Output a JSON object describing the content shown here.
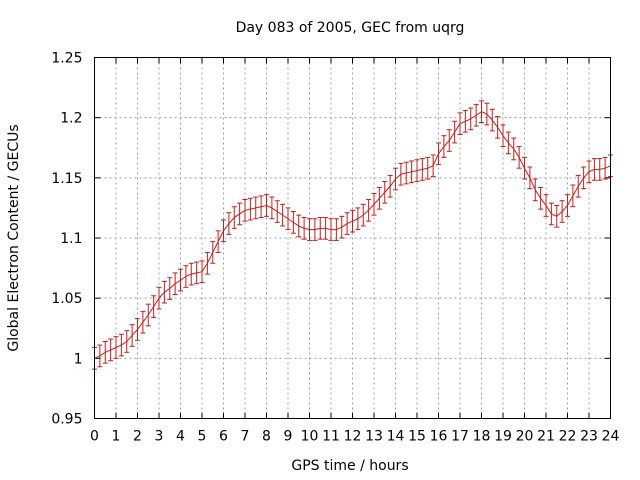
{
  "chart_data": {
    "type": "line",
    "title": "Day 083 of 2005, GEC from uqrg",
    "xlabel": "GPS time / hours",
    "ylabel": "Global Electron Content / GECUs",
    "xlim": [
      0,
      24
    ],
    "ylim": [
      0.95,
      1.25
    ],
    "xticks": [
      "0",
      "1",
      "2",
      "3",
      "4",
      "5",
      "6",
      "7",
      "8",
      "9",
      "10",
      "11",
      "12",
      "13",
      "14",
      "15",
      "16",
      "17",
      "18",
      "19",
      "20",
      "21",
      "22",
      "23",
      "24"
    ],
    "yticks": [
      "0.95",
      "1",
      "1.05",
      "1.1",
      "1.15",
      "1.2",
      "1.25"
    ],
    "grid": true,
    "error": 0.009,
    "series": [
      {
        "x": [
          0,
          0.25,
          0.5,
          0.75,
          1,
          1.25,
          1.5,
          1.75,
          2,
          2.25,
          2.5,
          2.75,
          3,
          3.25,
          3.5,
          3.75,
          4,
          4.25,
          4.5,
          4.75,
          5,
          5.25,
          5.5,
          5.75,
          6,
          6.25,
          6.5,
          6.75,
          7,
          7.25,
          7.5,
          7.75,
          8,
          8.25,
          8.5,
          8.75,
          9,
          9.25,
          9.5,
          9.75,
          10,
          10.25,
          10.5,
          10.75,
          11,
          11.25,
          11.5,
          11.75,
          12,
          12.25,
          12.5,
          12.75,
          13,
          13.25,
          13.5,
          13.75,
          14,
          14.25,
          14.5,
          14.75,
          15,
          15.25,
          15.5,
          15.75,
          16,
          16.25,
          16.5,
          16.75,
          17,
          17.25,
          17.5,
          17.75,
          18,
          18.25,
          18.5,
          18.75,
          19,
          19.25,
          19.5,
          19.75,
          20,
          20.25,
          20.5,
          20.75,
          21,
          21.25,
          21.5,
          21.75,
          22,
          22.25,
          22.5,
          22.75,
          23,
          23.25,
          23.5,
          23.75,
          24
        ],
        "y": [
          1.0,
          1.002,
          1.005,
          1.007,
          1.009,
          1.011,
          1.014,
          1.019,
          1.024,
          1.03,
          1.036,
          1.043,
          1.05,
          1.055,
          1.058,
          1.062,
          1.065,
          1.068,
          1.07,
          1.071,
          1.072,
          1.079,
          1.088,
          1.097,
          1.106,
          1.112,
          1.117,
          1.12,
          1.123,
          1.124,
          1.125,
          1.126,
          1.127,
          1.125,
          1.122,
          1.119,
          1.116,
          1.113,
          1.11,
          1.108,
          1.107,
          1.107,
          1.108,
          1.108,
          1.107,
          1.107,
          1.109,
          1.112,
          1.114,
          1.116,
          1.119,
          1.123,
          1.128,
          1.133,
          1.138,
          1.143,
          1.149,
          1.153,
          1.154,
          1.155,
          1.156,
          1.157,
          1.158,
          1.16,
          1.17,
          1.176,
          1.181,
          1.188,
          1.195,
          1.197,
          1.199,
          1.202,
          1.205,
          1.203,
          1.198,
          1.192,
          1.185,
          1.179,
          1.174,
          1.167,
          1.158,
          1.15,
          1.14,
          1.133,
          1.127,
          1.12,
          1.118,
          1.122,
          1.127,
          1.135,
          1.143,
          1.15,
          1.155,
          1.157,
          1.157,
          1.158,
          1.16
        ]
      }
    ]
  }
}
